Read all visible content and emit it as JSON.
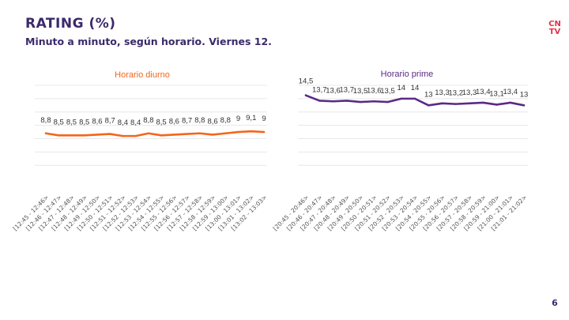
{
  "header": {
    "title": "RATING (%)",
    "subtitle": "Minuto a minuto, según horario. Viernes 12."
  },
  "brand": {
    "logo_text": "CN\nTV"
  },
  "page": {
    "number": "6"
  },
  "colors": {
    "diurno": "#f4661b",
    "prime": "#5b2a86",
    "grid": "#e8e8e8",
    "title_text": "#3b2a6b"
  },
  "chart_data": [
    {
      "type": "line",
      "title": "Horario diurno",
      "categories": [
        "[12:45 - 12:46>",
        "[12:46 - 12:47>",
        "[12:47 - 12:48>",
        "[12:48 - 12:49>",
        "[12:49 - 12:50>",
        "[12:50 - 12:51>",
        "[12:51 - 12:52>",
        "[12:52 - 12:53>",
        "[12:53 - 12:54>",
        "[12:54 - 12:55>",
        "[12:55 - 12:56>",
        "[12:56 - 12:57>",
        "[12:57 - 12:58>",
        "[12:58 - 12:59>",
        "[12:59 - 13:00>",
        "[13:00 - 13:01>",
        "[13:01 - 13:02>",
        "[13:02 - 13:03>"
      ],
      "values": [
        8.8,
        8.5,
        8.5,
        8.5,
        8.6,
        8.7,
        8.4,
        8.4,
        8.8,
        8.5,
        8.6,
        8.7,
        8.8,
        8.6,
        8.8,
        9,
        9.1,
        9
      ],
      "labels": [
        "8,8",
        "8,5",
        "8,5",
        "8,5",
        "8,6",
        "8,7",
        "8,4",
        "8,4",
        "8,8",
        "8,5",
        "8,6",
        "8,7",
        "8,8",
        "8,6",
        "8,8",
        "9",
        "9,1",
        "9"
      ],
      "ylim": [
        0,
        16
      ],
      "grid": true
    },
    {
      "type": "line",
      "title": "Horario prime",
      "categories": [
        "[20:45 - 20:46>",
        "[20:46 - 20:47>",
        "[20:47 - 20:48>",
        "[20:48 - 20:49>",
        "[20:49 - 20:50>",
        "[20:50 - 20:51>",
        "[20:51 - 20:52>",
        "[20:52 - 20:53>",
        "[20:53 - 20:54>",
        "[20:54 - 20:55>",
        "[20:55 - 20:56>",
        "[20:56 - 20:57>",
        "[20:57 - 20:58>",
        "[20:58 - 20:59>",
        "[20:59 - 21:00>",
        "[21:00 - 21:01>",
        "[21:01 - 21:02>"
      ],
      "values": [
        14.5,
        13.7,
        13.6,
        13.7,
        13.5,
        13.6,
        13.5,
        14,
        14,
        13,
        13.3,
        13.2,
        13.3,
        13.4,
        13.1,
        13.4,
        13
      ],
      "labels": [
        "14,5",
        "13,7",
        "13,6",
        "13,7",
        "13,5",
        "13,6",
        "13,5",
        "14",
        "14",
        "13",
        "13,3",
        "13,2",
        "13,3",
        "13,4",
        "13,1",
        "13,4",
        "13"
      ],
      "ylim": [
        0,
        16
      ],
      "grid": true
    }
  ]
}
